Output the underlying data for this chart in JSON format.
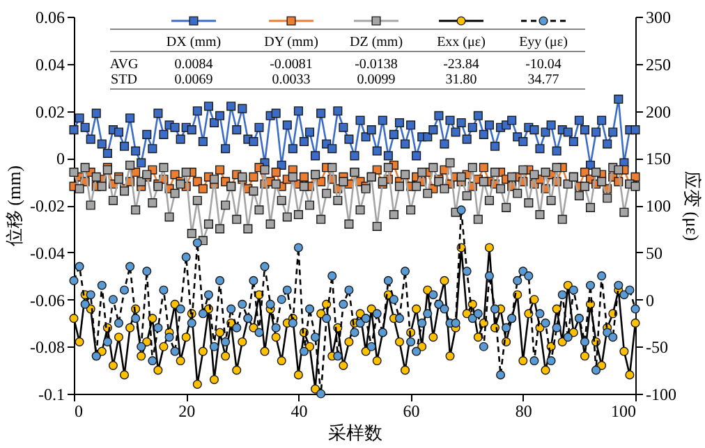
{
  "chart_data": {
    "type": "line",
    "xlabel": "采样数",
    "ylabel": "位移 (mm)",
    "y2label": "应变 (με)",
    "x": [
      0,
      1,
      2,
      3,
      4,
      5,
      6,
      7,
      8,
      9,
      10,
      11,
      12,
      13,
      14,
      15,
      16,
      17,
      18,
      19,
      20,
      21,
      22,
      23,
      24,
      25,
      26,
      27,
      28,
      29,
      30,
      31,
      32,
      33,
      34,
      35,
      36,
      37,
      38,
      39,
      40,
      41,
      42,
      43,
      44,
      45,
      46,
      47,
      48,
      49,
      50,
      51,
      52,
      53,
      54,
      55,
      56,
      57,
      58,
      59,
      60,
      61,
      62,
      63,
      64,
      65,
      66,
      67,
      68,
      69,
      70,
      71,
      72,
      73,
      74,
      75,
      76,
      77,
      78,
      79,
      80,
      81,
      82,
      83,
      84,
      85,
      86,
      87,
      88,
      89,
      90,
      91,
      92,
      93,
      94,
      95,
      96,
      97,
      98,
      99,
      100
    ],
    "xlim": [
      0,
      100
    ],
    "xticks": [
      0,
      20,
      40,
      60,
      80,
      100
    ],
    "ylim": [
      -0.1,
      0.06
    ],
    "yticks": [
      -0.1,
      -0.08,
      -0.06,
      -0.04,
      -0.02,
      0,
      0.02,
      0.04,
      0.06
    ],
    "y2lim": [
      -100,
      300
    ],
    "y2ticks": [
      -100,
      -50,
      0,
      50,
      100,
      150,
      200,
      250,
      300
    ],
    "legend": "top",
    "series": [
      {
        "name": "DX (mm)",
        "color": "#3a6cc8",
        "marker": "square",
        "line_style": "solid",
        "values": [
          0.012,
          0.017,
          0.013,
          0.008,
          0.019,
          0.006,
          0.002,
          0.012,
          0.011,
          0.005,
          0.017,
          0.003,
          -0.002,
          0.01,
          0.004,
          0.019,
          0.01,
          0.014,
          0.013,
          0.008,
          0.013,
          0.012,
          0.02,
          0.007,
          0.022,
          0.015,
          0.018,
          0.004,
          0.022,
          0.012,
          0.021,
          0.008,
          0.007,
          0.013,
          -0.002,
          0.018,
          0.019,
          -0.003,
          0.014,
          0.004,
          0.02,
          0.007,
          0.011,
          0.001,
          0.019,
          0.006,
          0.004,
          0.02,
          0.013,
          0.008,
          0.001,
          0.016,
          0.009,
          0.012,
          0.003,
          0.016,
          0.001,
          0.01,
          0.015,
          0.006,
          0.014,
          0.001,
          0.009,
          0.009,
          0.012,
          0.018,
          0.006,
          0.016,
          0.011,
          0.015,
          0.008,
          0.013,
          0.018,
          0.01,
          0.014,
          0.005,
          0.013,
          0.014,
          0.016,
          0.009,
          0.007,
          0.013,
          0.012,
          0.004,
          0.011,
          0.014,
          0.003,
          0.012,
          0.011,
          0.007,
          0.016,
          0.012,
          -0.003,
          0.011,
          0.016,
          0.006,
          0.011,
          0.025,
          -0.002,
          0.012,
          0.012
        ]
      },
      {
        "name": "DY (mm)",
        "color": "#ed7d31",
        "marker": "square",
        "line_style": "solid",
        "values": [
          -0.012,
          -0.008,
          -0.01,
          -0.006,
          -0.012,
          -0.009,
          -0.004,
          -0.011,
          -0.008,
          -0.013,
          -0.01,
          -0.006,
          -0.012,
          -0.008,
          -0.005,
          -0.011,
          -0.009,
          -0.013,
          -0.007,
          -0.01,
          -0.012,
          -0.006,
          -0.01,
          -0.013,
          -0.008,
          -0.011,
          -0.005,
          -0.01,
          -0.012,
          -0.007,
          -0.009,
          -0.013,
          -0.008,
          -0.004,
          -0.011,
          -0.01,
          -0.006,
          -0.012,
          -0.009,
          -0.005,
          -0.011,
          -0.008,
          -0.012,
          -0.007,
          -0.01,
          -0.004,
          -0.009,
          -0.013,
          -0.008,
          -0.011,
          -0.006,
          -0.01,
          -0.012,
          -0.008,
          -0.005,
          -0.011,
          -0.009,
          -0.003,
          -0.01,
          -0.007,
          -0.012,
          -0.008,
          -0.01,
          -0.006,
          -0.013,
          -0.009,
          -0.005,
          -0.011,
          -0.008,
          -0.01,
          -0.007,
          -0.012,
          -0.009,
          -0.004,
          -0.01,
          -0.011,
          -0.006,
          -0.009,
          -0.012,
          -0.008,
          -0.01,
          -0.005,
          -0.011,
          -0.009,
          -0.013,
          -0.007,
          -0.01,
          -0.004,
          -0.011,
          -0.008,
          -0.012,
          -0.006,
          -0.009,
          -0.011,
          -0.007,
          -0.013,
          -0.008,
          -0.01,
          -0.005,
          -0.011,
          -0.008
        ]
      },
      {
        "name": "DZ (mm)",
        "color": "#a5a5a5",
        "marker": "square",
        "line_style": "solid",
        "values": [
          -0.006,
          -0.013,
          -0.004,
          -0.02,
          -0.008,
          -0.012,
          -0.005,
          -0.018,
          -0.009,
          -0.014,
          -0.003,
          -0.022,
          -0.01,
          -0.007,
          -0.019,
          -0.012,
          -0.004,
          -0.025,
          -0.015,
          -0.011,
          -0.006,
          -0.032,
          -0.018,
          -0.035,
          -0.028,
          -0.009,
          -0.03,
          -0.02,
          -0.012,
          -0.026,
          -0.008,
          -0.03,
          -0.014,
          -0.022,
          -0.005,
          -0.028,
          -0.011,
          -0.018,
          -0.025,
          -0.008,
          -0.024,
          -0.012,
          -0.02,
          -0.007,
          -0.026,
          -0.015,
          -0.004,
          -0.018,
          -0.01,
          -0.028,
          -0.006,
          -0.022,
          -0.013,
          -0.008,
          -0.029,
          -0.01,
          -0.004,
          -0.024,
          -0.012,
          -0.007,
          -0.022,
          -0.012,
          -0.006,
          -0.015,
          -0.004,
          -0.01,
          -0.013,
          -0.002,
          -0.023,
          -0.008,
          -0.016,
          -0.004,
          -0.026,
          -0.01,
          -0.018,
          -0.006,
          -0.013,
          -0.021,
          -0.008,
          -0.015,
          -0.005,
          -0.019,
          -0.007,
          -0.024,
          -0.006,
          -0.018,
          -0.004,
          -0.026,
          -0.011,
          -0.008,
          -0.016,
          -0.012,
          -0.021,
          -0.006,
          -0.01,
          -0.017,
          -0.004,
          -0.005,
          -0.023,
          -0.011,
          -0.012
        ]
      },
      {
        "name": "Exx (με)",
        "color": "#000000",
        "colors": [
          "#ffc000",
          "#ffc000",
          "#ffc000",
          "#ffc000",
          "#ffc000",
          "#ffc000",
          "#ffc000",
          "#ffc000",
          "#ffc000",
          "#ffc000",
          "#ffc000",
          "#ffc000",
          "#ffc000",
          "#ffc000",
          "#ffc000",
          "#ffc000",
          "#ffc000",
          "#ffc000",
          "#ffc000",
          "#ffc000",
          "#ffc000",
          "#ffc000",
          "#ffc000",
          "#ffc000",
          "#ffc000",
          "#ffc000",
          "#ffc000",
          "#ffc000",
          "#ffc000",
          "#ffc000",
          "#ffc000",
          "#ffc000",
          "#ffc000",
          "#ffc000",
          "#ffc000",
          "#ffc000",
          "#ffc000",
          "#ffc000",
          "#ffc000",
          "#ffc000",
          "#ffc000",
          "#ffc000",
          "#ffc000",
          "#ffc000",
          "#ffc000",
          "#ffc000",
          "#ffc000",
          "#ffc000",
          "#ffc000",
          "#ffc000",
          "#ffc000",
          "#ffc000",
          "#ffc000",
          "#ffc000",
          "#ffc000",
          "#ffc000",
          "#ffc000",
          "#ffc000",
          "#ffc000",
          "#ffc000",
          "#ffc000",
          "#ffc000",
          "#ffc000",
          "#ffc000",
          "#ffc000",
          "#ffc000",
          "#ffc000",
          "#ffc000",
          "#ffc000",
          "#ffc000",
          "#ffc000",
          "#ffc000",
          "#ffc000",
          "#ffc000",
          "#ffc000",
          "#ffc000",
          "#ffc000",
          "#ffc000",
          "#ffc000",
          "#ffc000",
          "#ffc000",
          "#ffc000",
          "#ffc000",
          "#ffc000",
          "#ffc000",
          "#ffc000",
          "#ffc000",
          "#ffc000",
          "#ffc000",
          "#ffc000",
          "#ffc000",
          "#ffc000",
          "#ffc000",
          "#ffc000",
          "#ffc000",
          "#ffc000",
          "#ffc000",
          "#ffc000",
          "#ffc000",
          "#ffc000",
          "#ffc000"
        ],
        "marker": "circle",
        "line_style": "solid",
        "axis": "y2",
        "values": [
          -20,
          -45,
          5,
          -10,
          -60,
          -55,
          -30,
          -70,
          -40,
          -80,
          -30,
          -10,
          -60,
          -45,
          -20,
          -75,
          -50,
          -35,
          -5,
          -65,
          -40,
          -15,
          -90,
          -55,
          -10,
          -85,
          -35,
          -60,
          -25,
          -75,
          -45,
          -20,
          -30,
          5,
          -55,
          -10,
          -40,
          -65,
          -25,
          -20,
          -80,
          -35,
          -50,
          -95,
          -15,
          -5,
          -60,
          -30,
          -70,
          -45,
          -25,
          -15,
          -55,
          -10,
          -65,
          -35,
          5,
          -20,
          -45,
          -75,
          -35,
          -10,
          -50,
          10,
          -40,
          -5,
          20,
          -60,
          -30,
          55,
          -15,
          -5,
          -40,
          -25,
          55,
          -30,
          -10,
          -45,
          -20,
          5,
          -65,
          -15,
          0,
          -30,
          -75,
          -50,
          -10,
          -45,
          15,
          -35,
          -20,
          -60,
          -5,
          -45,
          -70,
          -30,
          -15,
          10,
          -55,
          -80,
          -25
        ]
      },
      {
        "name": "Eyy (με)",
        "color": "#000000",
        "colors": [
          "#5b9bd5",
          "#5b9bd5",
          "#5b9bd5",
          "#5b9bd5",
          "#5b9bd5",
          "#5b9bd5",
          "#5b9bd5",
          "#5b9bd5",
          "#5b9bd5",
          "#5b9bd5",
          "#5b9bd5",
          "#5b9bd5",
          "#5b9bd5",
          "#5b9bd5",
          "#5b9bd5",
          "#5b9bd5",
          "#5b9bd5",
          "#5b9bd5",
          "#5b9bd5",
          "#5b9bd5",
          "#5b9bd5",
          "#5b9bd5",
          "#5b9bd5",
          "#5b9bd5",
          "#5b9bd5",
          "#5b9bd5",
          "#5b9bd5",
          "#5b9bd5",
          "#5b9bd5",
          "#5b9bd5",
          "#5b9bd5",
          "#5b9bd5",
          "#5b9bd5",
          "#5b9bd5",
          "#5b9bd5",
          "#5b9bd5",
          "#5b9bd5",
          "#5b9bd5",
          "#5b9bd5",
          "#5b9bd5",
          "#5b9bd5",
          "#5b9bd5",
          "#5b9bd5",
          "#5b9bd5",
          "#5b9bd5",
          "#5b9bd5",
          "#5b9bd5",
          "#5b9bd5",
          "#5b9bd5",
          "#5b9bd5",
          "#5b9bd5",
          "#5b9bd5",
          "#5b9bd5",
          "#5b9bd5",
          "#5b9bd5",
          "#5b9bd5",
          "#5b9bd5",
          "#5b9bd5",
          "#5b9bd5",
          "#5b9bd5",
          "#5b9bd5",
          "#5b9bd5",
          "#5b9bd5",
          "#5b9bd5",
          "#5b9bd5",
          "#5b9bd5",
          "#5b9bd5",
          "#5b9bd5",
          "#5b9bd5",
          "#5b9bd5",
          "#5b9bd5",
          "#5b9bd5",
          "#5b9bd5",
          "#5b9bd5",
          "#5b9bd5",
          "#5b9bd5",
          "#5b9bd5",
          "#5b9bd5",
          "#5b9bd5",
          "#5b9bd5",
          "#5b9bd5",
          "#5b9bd5",
          "#5b9bd5",
          "#5b9bd5",
          "#5b9bd5",
          "#5b9bd5",
          "#5b9bd5",
          "#5b9bd5",
          "#5b9bd5",
          "#5b9bd5",
          "#5b9bd5",
          "#5b9bd5",
          "#5b9bd5",
          "#5b9bd5",
          "#5b9bd5",
          "#5b9bd5",
          "#5b9bd5",
          "#5b9bd5",
          "#5b9bd5",
          "#5b9bd5",
          "#5b9bd5"
        ],
        "marker": "circle",
        "line_style": "dashed",
        "axis": "y2",
        "values": [
          20,
          35,
          -5,
          5,
          -60,
          15,
          -45,
          0,
          -25,
          10,
          35,
          -20,
          -50,
          30,
          -65,
          -30,
          10,
          -40,
          -55,
          -10,
          45,
          -25,
          60,
          -15,
          5,
          -50,
          20,
          -45,
          -10,
          -30,
          -5,
          -20,
          20,
          -35,
          35,
          -5,
          -30,
          0,
          10,
          -25,
          55,
          -55,
          -10,
          -40,
          -100,
          -20,
          25,
          -60,
          -5,
          10,
          -35,
          -25,
          -20,
          -50,
          -15,
          -35,
          20,
          0,
          -20,
          30,
          -45,
          -55,
          -25,
          -15,
          5,
          -5,
          -10,
          -25,
          -25,
          95,
          30,
          -20,
          -15,
          -50,
          25,
          -10,
          -80,
          -30,
          -20,
          20,
          30,
          25,
          -65,
          -15,
          -25,
          -65,
          -30,
          5,
          -40,
          10,
          -20,
          -45,
          15,
          -75,
          25,
          -35,
          -40,
          15,
          5,
          10,
          -10
        ]
      }
    ],
    "annotations": [
      "AVG",
      "0.0084",
      "-0.0081",
      "-0.0138",
      "-23.84",
      "-10.04",
      "STD",
      "0.0069",
      "0.0033",
      "0.0099",
      "31.80",
      "34.77"
    ]
  }
}
